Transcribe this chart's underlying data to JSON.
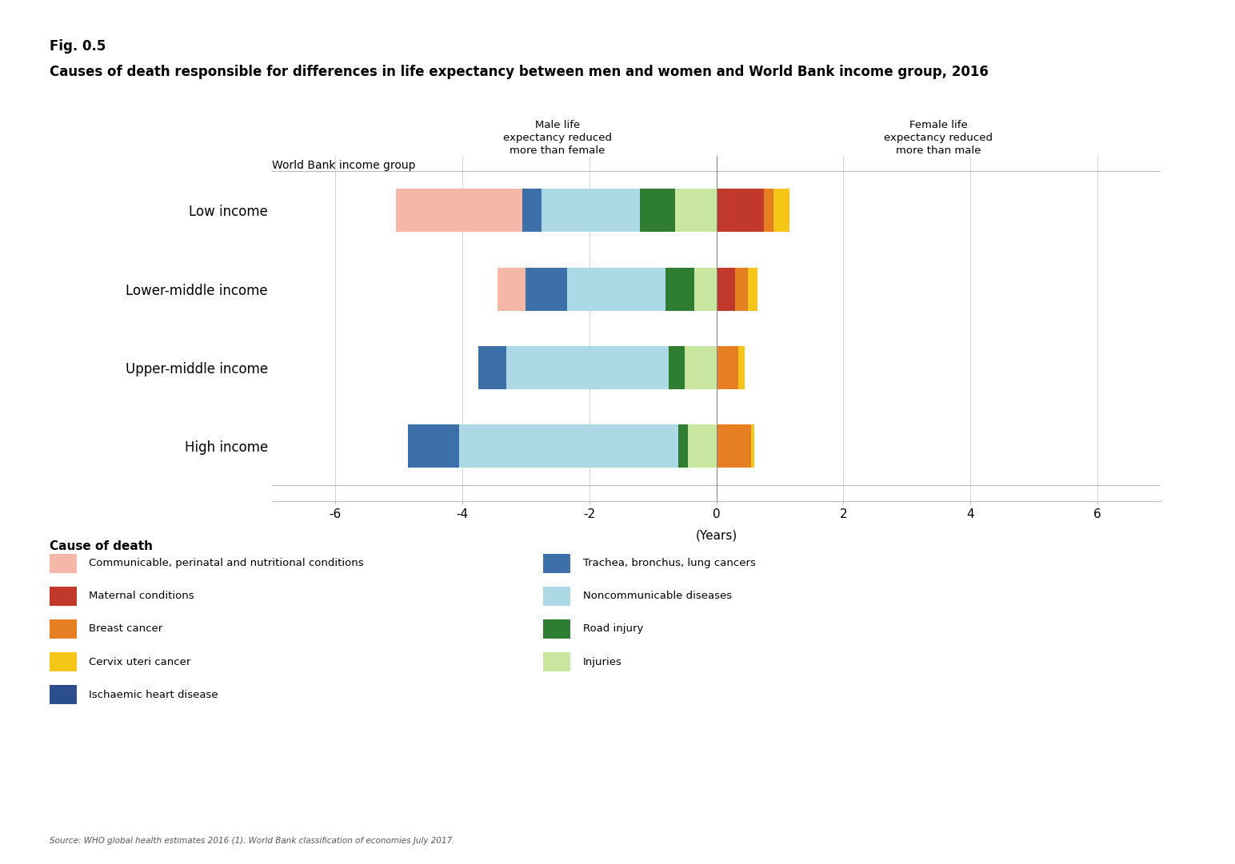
{
  "fig_label": "Fig. 0.5",
  "title": "Causes of death responsible for differences in life expectancy between men and women and World Bank income group, 2016",
  "income_groups": [
    "Low income",
    "Lower-middle income",
    "Upper-middle income",
    "High income"
  ],
  "xlabel": "(Years)",
  "xlim": [
    -7,
    7
  ],
  "xticks": [
    -6,
    -4,
    -2,
    0,
    2,
    4,
    6
  ],
  "annotation_left": "Male life\nexpectancy reduced\nmore than female",
  "annotation_right": "Female life\nexpectancy reduced\nmore than male",
  "source": "Source: WHO global health estimates 2016 (1). World Bank classification of economies July 2017.",
  "wb_income_label": "World Bank income group",
  "colors": {
    "communicable": "#F5B8A8",
    "maternal": "#C0392B",
    "breast_cancer": "#E67E22",
    "cervix_cancer": "#F5C518",
    "ischaemic": "#2C4F8C",
    "trachea": "#3D6FA8",
    "noncommunicable": "#ADD8E6",
    "road_injury": "#2E7D32",
    "injuries": "#C8E6A0"
  },
  "legend_items_col1": [
    {
      "label": "Communicable, perinatal and nutritional conditions",
      "color": "#F5B8A8"
    },
    {
      "label": "Maternal conditions",
      "color": "#C0392B"
    },
    {
      "label": "Breast cancer",
      "color": "#E67E22"
    },
    {
      "label": "Cervix uteri cancer",
      "color": "#F5C518"
    },
    {
      "label": "Ischaemic heart disease",
      "color": "#2C4F8C"
    }
  ],
  "legend_items_col2": [
    {
      "label": "Trachea, bronchus, lung cancers",
      "color": "#3D6FA8"
    },
    {
      "label": "Noncommunicable diseases",
      "color": "#ADD8E6"
    },
    {
      "label": "Road injury",
      "color": "#2E7D32"
    },
    {
      "label": "Injuries",
      "color": "#C8E6A0"
    }
  ],
  "bars": {
    "Low income": {
      "left_order": [
        "injuries",
        "road_injury",
        "noncommunicable",
        "trachea",
        "communicable"
      ],
      "right_order": [
        "maternal",
        "breast_cancer",
        "cervix_cancer"
      ],
      "injuries": -0.65,
      "road_injury": -0.55,
      "noncommunicable": -1.55,
      "trachea": -0.3,
      "communicable": -2.0,
      "maternal": 0.75,
      "breast_cancer": 0.15,
      "cervix_cancer": 0.25
    },
    "Lower-middle income": {
      "left_order": [
        "injuries",
        "road_injury",
        "noncommunicable",
        "trachea",
        "communicable"
      ],
      "right_order": [
        "maternal",
        "breast_cancer",
        "cervix_cancer"
      ],
      "injuries": -0.35,
      "road_injury": -0.45,
      "noncommunicable": -1.55,
      "trachea": -0.65,
      "communicable": -0.45,
      "maternal": 0.3,
      "breast_cancer": 0.2,
      "cervix_cancer": 0.15
    },
    "Upper-middle income": {
      "left_order": [
        "injuries",
        "road_injury",
        "noncommunicable",
        "trachea",
        "communicable"
      ],
      "right_order": [
        "breast_cancer",
        "cervix_cancer"
      ],
      "injuries": -0.5,
      "road_injury": -0.25,
      "noncommunicable": -2.55,
      "trachea": -0.45,
      "communicable": 0.0,
      "breast_cancer": 0.35,
      "cervix_cancer": 0.1
    },
    "High income": {
      "left_order": [
        "injuries",
        "road_injury",
        "noncommunicable",
        "trachea",
        "communicable"
      ],
      "right_order": [
        "breast_cancer",
        "cervix_cancer"
      ],
      "injuries": -0.45,
      "road_injury": -0.15,
      "noncommunicable": -3.45,
      "trachea": -0.8,
      "communicable": 0.0,
      "breast_cancer": 0.55,
      "cervix_cancer": 0.05
    }
  }
}
